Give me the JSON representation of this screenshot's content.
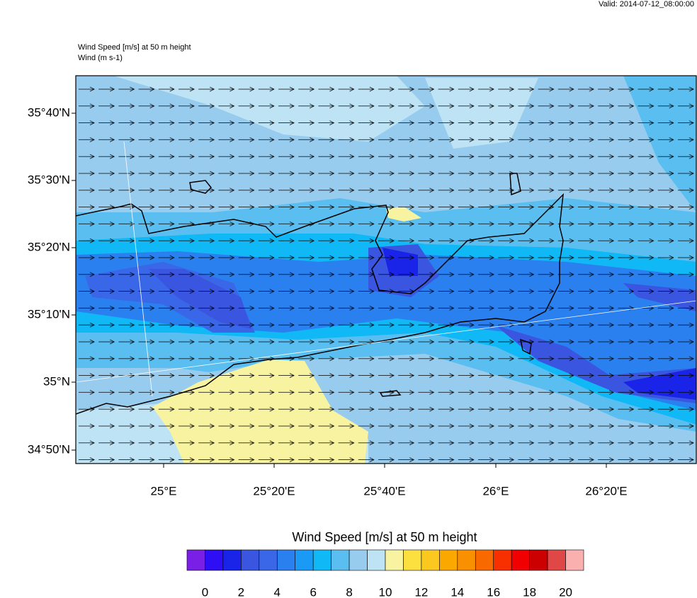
{
  "header": {
    "valid": "Valid: 2014-07-12_08:00:00",
    "field_title": "Wind Speed [m/s] at 50 m height",
    "vector_title": "Wind   (m s-1)"
  },
  "map": {
    "lat_labels": [
      "35°40'N",
      "35°30'N",
      "35°20'N",
      "35°10'N",
      "35°N",
      "34°50'N"
    ],
    "lon_labels": [
      "25°E",
      "25°20'E",
      "25°40'E",
      "26°E",
      "26°20'E"
    ]
  },
  "colorbar": {
    "title": "Wind Speed [m/s] at 50 m height",
    "colors": [
      "#7a1fe6",
      "#2e0ff5",
      "#1a24e8",
      "#3a55e0",
      "#3a66e8",
      "#2b80f0",
      "#1a9af5",
      "#10b8f5",
      "#5abff0",
      "#98ccee",
      "#bde3f5",
      "#f7f3a0",
      "#fbe040",
      "#fbc820",
      "#fba800",
      "#f89000",
      "#f86a00",
      "#f83000",
      "#f00000",
      "#cc0000",
      "#e04848",
      "#fbb0b0"
    ],
    "ticks": [
      0,
      2,
      4,
      6,
      8,
      10,
      12,
      14,
      16,
      18,
      20
    ]
  }
}
